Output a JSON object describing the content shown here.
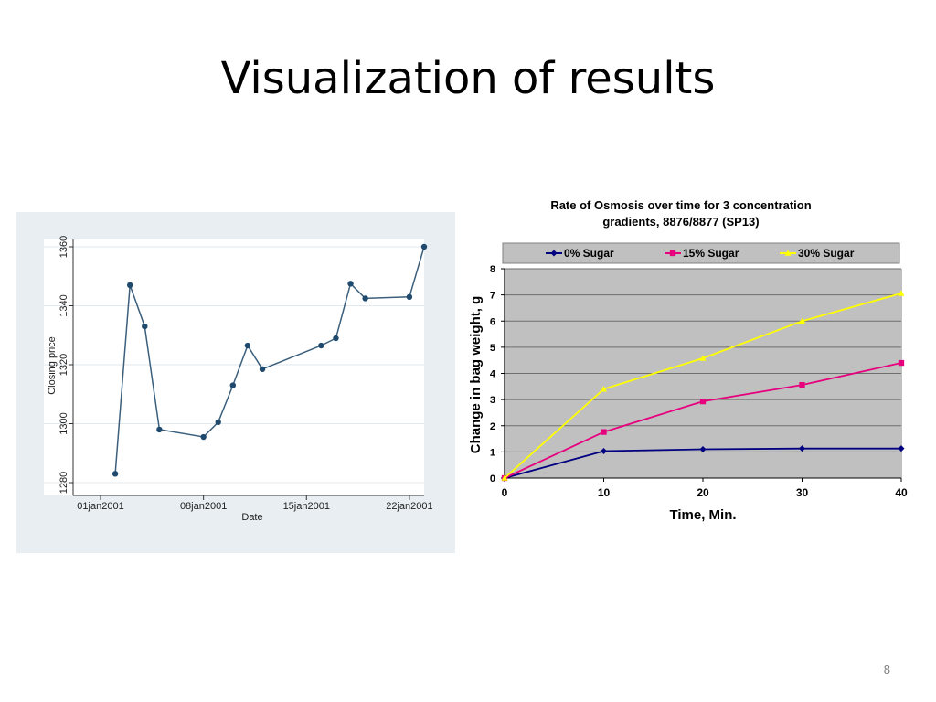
{
  "slide": {
    "title": "Visualization of results",
    "page_number": "8"
  },
  "chart_data": [
    {
      "type": "line",
      "title": "",
      "xlabel": "Date",
      "ylabel": "Closing price",
      "ylim": [
        1280,
        1360
      ],
      "xlim": [
        "2001-01-01",
        "2001-01-23"
      ],
      "x_ticks": [
        {
          "date": "2001-01-01",
          "label": "01jan2001"
        },
        {
          "date": "2001-01-08",
          "label": "08jan2001"
        },
        {
          "date": "2001-01-15",
          "label": "15jan2001"
        },
        {
          "date": "2001-01-22",
          "label": "22jan2001"
        }
      ],
      "y_ticks": [
        1280,
        1300,
        1320,
        1340,
        1360
      ],
      "grid": true,
      "colors": {
        "background": "#e8eef2",
        "plot": "#ffffff",
        "line": "#3b5f7c",
        "marker": "#1f4a6e"
      },
      "series": [
        {
          "x": [
            "2001-01-02",
            "2001-01-03",
            "2001-01-04",
            "2001-01-05",
            "2001-01-08",
            "2001-01-09",
            "2001-01-10",
            "2001-01-11",
            "2001-01-12",
            "2001-01-16",
            "2001-01-17",
            "2001-01-18",
            "2001-01-19",
            "2001-01-22",
            "2001-01-23"
          ],
          "y": [
            1283,
            1347,
            1333,
            1298,
            1295.5,
            1300.5,
            1313,
            1326.5,
            1318.5,
            1326.5,
            1329,
            1347.5,
            1342.5,
            1343,
            1360
          ]
        }
      ]
    },
    {
      "type": "line",
      "title": "Rate of Osmosis over time for 3 concentration gradients, 8876/8877 (SP13)",
      "title_lines": [
        "Rate of Osmosis over time for 3 concentration",
        "gradients, 8876/8877 (SP13)"
      ],
      "xlabel": "Time, Min.",
      "ylabel": "Change in bag weight, g",
      "xlim": [
        0,
        40
      ],
      "ylim": [
        0,
        8
      ],
      "x_ticks": [
        0,
        10,
        20,
        30,
        40
      ],
      "y_ticks": [
        0,
        1,
        2,
        3,
        4,
        5,
        6,
        7,
        8
      ],
      "grid": true,
      "legend": "top",
      "colors": {
        "plot": "#c0c0c0",
        "legend_bg": "#c0c0c0"
      },
      "x": [
        0,
        10,
        20,
        30,
        40
      ],
      "series": [
        {
          "name": "0% Sugar",
          "values": [
            0,
            1.03,
            1.1,
            1.13,
            1.13
          ],
          "color": "#000080",
          "marker": "diamond"
        },
        {
          "name": "15% Sugar",
          "values": [
            0,
            1.76,
            2.93,
            3.56,
            4.4
          ],
          "color": "#e6007e",
          "marker": "square"
        },
        {
          "name": "30% Sugar",
          "values": [
            0,
            3.4,
            4.58,
            6.0,
            7.06
          ],
          "color": "#ffff00",
          "marker": "triangle"
        }
      ]
    }
  ]
}
